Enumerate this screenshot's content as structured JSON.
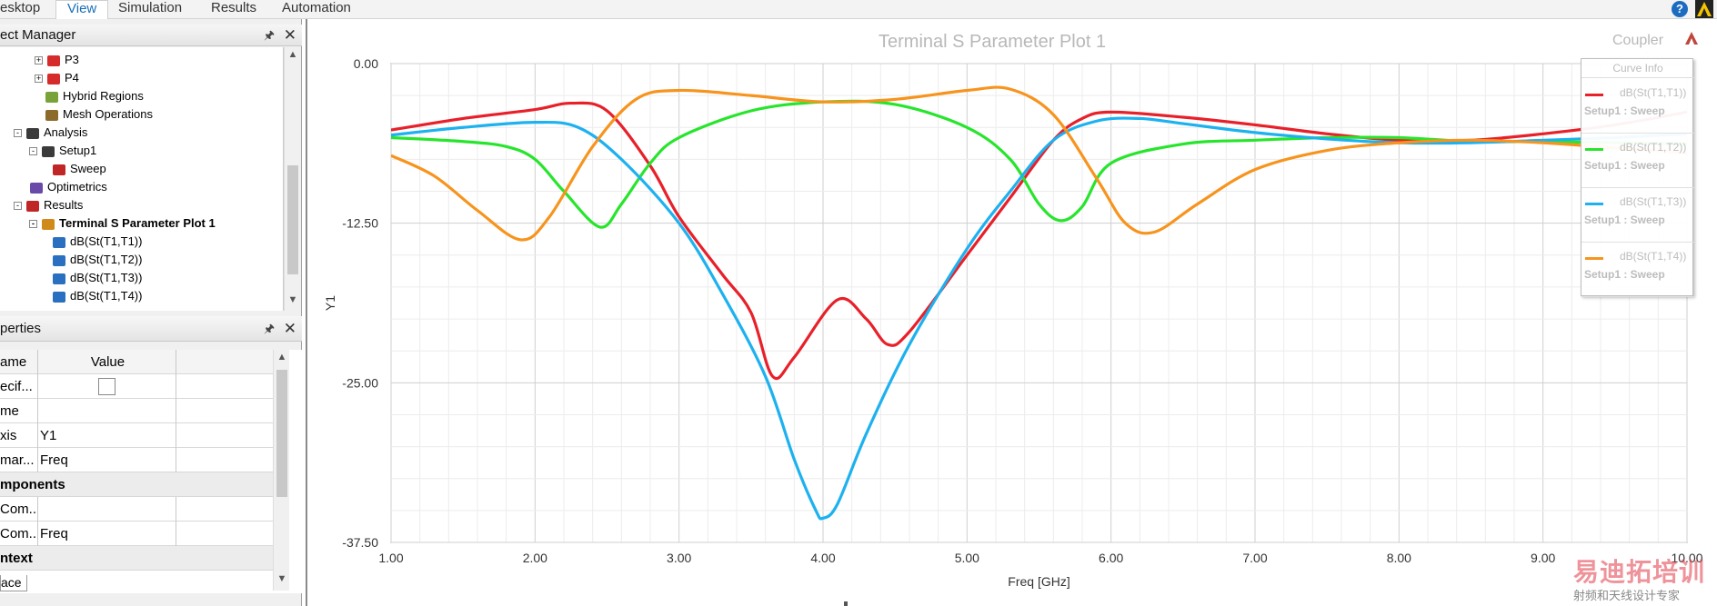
{
  "menu": {
    "items": [
      "esktop",
      "View",
      "Simulation",
      "Results",
      "Automation"
    ],
    "active_index": 1
  },
  "project_manager": {
    "title": "ect Manager",
    "tree": [
      {
        "label": "P3",
        "level": 3,
        "expander": "+",
        "icon": "port-icon"
      },
      {
        "label": "P4",
        "level": 3,
        "expander": "+",
        "icon": "port-icon"
      },
      {
        "label": "Hybrid Regions",
        "level": 2,
        "expander": "",
        "icon": "hybrid-regions-icon"
      },
      {
        "label": "Mesh Operations",
        "level": 2,
        "expander": "",
        "icon": "mesh-icon"
      },
      {
        "label": "Analysis",
        "level": 1,
        "expander": "-",
        "icon": "analysis-icon"
      },
      {
        "label": "Setup1",
        "level": 2,
        "expander": "-",
        "icon": "setup-icon"
      },
      {
        "label": "Sweep",
        "level": 3,
        "expander": "",
        "icon": "sweep-icon"
      },
      {
        "label": "Optimetrics",
        "level": 1,
        "expander": "",
        "icon": "optimetrics-icon"
      },
      {
        "label": "Results",
        "level": 1,
        "expander": "-",
        "icon": "results-icon"
      },
      {
        "label": "Terminal S Parameter Plot 1",
        "level": 2,
        "expander": "-",
        "icon": "plot-icon",
        "bold": true
      },
      {
        "label": "dB(St(T1,T1))",
        "level": 3,
        "expander": "",
        "icon": "trace-icon"
      },
      {
        "label": "dB(St(T1,T2))",
        "level": 3,
        "expander": "",
        "icon": "trace-icon"
      },
      {
        "label": "dB(St(T1,T3))",
        "level": 3,
        "expander": "",
        "icon": "trace-icon"
      },
      {
        "label": "dB(St(T1,T4))",
        "level": 3,
        "expander": "",
        "icon": "trace-icon"
      }
    ]
  },
  "properties": {
    "title": "perties",
    "header": {
      "name": "ame",
      "value": "Value"
    },
    "rows": [
      {
        "name": "ecif...",
        "value": "",
        "type": "checkbox"
      },
      {
        "name": "me",
        "value": ""
      },
      {
        "name": "xis",
        "value": "Y1"
      },
      {
        "name": "mar...",
        "value": "Freq"
      },
      {
        "name": "mponents",
        "value": "",
        "type": "group"
      },
      {
        "name": "Com...",
        "value": ""
      },
      {
        "name": "Com...",
        "value": "Freq"
      },
      {
        "name": "ntext",
        "value": "",
        "type": "group"
      }
    ],
    "bottom_tab": "ace"
  },
  "plot": {
    "title": "Terminal S Parameter Plot 1",
    "project": "Coupler",
    "curve_info": {
      "title": "Curve Info",
      "items": [
        {
          "name": "dB(St(T1,T1))",
          "setup": "Setup1 : Sweep",
          "color": "#e8202a"
        },
        {
          "name": "dB(St(T1,T2))",
          "setup": "Setup1 : Sweep",
          "color": "#27e52c"
        },
        {
          "name": "dB(St(T1,T3))",
          "setup": "Setup1 : Sweep",
          "color": "#1db1ef"
        },
        {
          "name": "dB(St(T1,T4))",
          "setup": "Setup1 : Sweep",
          "color": "#f7941d"
        }
      ]
    },
    "watermark": "易迪拓培训",
    "watermark_sub": "射频和天线设计专家"
  },
  "chart_data": {
    "type": "line",
    "title": "Terminal S Parameter Plot 1",
    "xlabel": "Freq [GHz]",
    "ylabel": "Y1",
    "xlim": [
      1.0,
      10.0
    ],
    "ylim": [
      -37.5,
      0.0
    ],
    "x_ticks": [
      "1.00",
      "2.00",
      "3.00",
      "4.00",
      "5.00",
      "6.00",
      "7.00",
      "8.00",
      "9.00",
      "10.00"
    ],
    "y_ticks": [
      "0.00",
      "-12.50",
      "-25.00",
      "-37.50"
    ],
    "grid": true,
    "legend": "top-right",
    "series": [
      {
        "name": "dB(St(T1,T1))",
        "color": "#e8202a",
        "x": [
          1.0,
          1.5,
          2.0,
          2.25,
          2.5,
          2.8,
          3.0,
          3.3,
          3.5,
          3.65,
          3.8,
          4.1,
          4.3,
          4.45,
          4.6,
          5.0,
          5.3,
          5.6,
          5.8,
          6.0,
          6.5,
          7.0,
          7.5,
          8.0,
          8.5,
          9.0,
          9.5,
          10.0
        ],
        "y": [
          -5.2,
          -4.3,
          -3.6,
          -3.1,
          -3.7,
          -8.0,
          -12.0,
          -16.5,
          -19.5,
          -24.5,
          -23.0,
          -18.5,
          -20.0,
          -22.0,
          -21.0,
          -15.0,
          -10.5,
          -6.0,
          -4.3,
          -3.8,
          -4.2,
          -4.8,
          -5.5,
          -6.0,
          -6.0,
          -5.5,
          -4.8,
          -3.8
        ]
      },
      {
        "name": "dB(St(T1,T2))",
        "color": "#27e52c",
        "x": [
          1.0,
          1.5,
          1.8,
          2.0,
          2.2,
          2.45,
          2.6,
          2.8,
          3.0,
          3.5,
          4.0,
          4.5,
          5.0,
          5.3,
          5.5,
          5.65,
          5.8,
          6.0,
          6.5,
          7.0,
          7.5,
          8.0,
          8.5,
          9.0,
          9.5,
          10.0
        ],
        "y": [
          -5.8,
          -6.1,
          -6.5,
          -7.5,
          -10.0,
          -12.8,
          -11.0,
          -7.8,
          -5.8,
          -3.7,
          -3.0,
          -3.2,
          -5.0,
          -7.5,
          -11.0,
          -12.3,
          -11.2,
          -7.8,
          -6.3,
          -6.0,
          -5.8,
          -5.8,
          -6.1,
          -6.1,
          -6.2,
          -6.3
        ]
      },
      {
        "name": "dB(St(T1,T3))",
        "color": "#1db1ef",
        "x": [
          1.0,
          1.5,
          2.0,
          2.3,
          2.6,
          3.0,
          3.3,
          3.6,
          3.8,
          3.95,
          4.0,
          4.1,
          4.3,
          4.6,
          5.0,
          5.3,
          5.6,
          5.9,
          6.2,
          6.5,
          7.0,
          7.5,
          8.0,
          8.5,
          9.0,
          9.5,
          10.0
        ],
        "y": [
          -5.6,
          -5.0,
          -4.6,
          -5.0,
          -7.5,
          -12.5,
          -18.0,
          -24.5,
          -31.0,
          -35.0,
          -35.6,
          -34.5,
          -29.0,
          -22.0,
          -14.5,
          -10.0,
          -6.0,
          -4.5,
          -4.3,
          -4.7,
          -5.4,
          -5.9,
          -6.2,
          -6.2,
          -6.0,
          -5.8,
          -5.5
        ]
      },
      {
        "name": "dB(St(T1,T4))",
        "color": "#f7941d",
        "x": [
          1.0,
          1.3,
          1.6,
          1.9,
          2.1,
          2.4,
          2.7,
          3.0,
          3.5,
          4.0,
          4.5,
          5.0,
          5.3,
          5.6,
          5.9,
          6.1,
          6.3,
          6.6,
          7.0,
          7.5,
          8.0,
          8.5,
          9.0,
          9.5,
          10.0
        ],
        "y": [
          -7.2,
          -8.8,
          -11.5,
          -13.8,
          -12.0,
          -6.5,
          -2.8,
          -2.1,
          -2.5,
          -3.0,
          -2.8,
          -2.1,
          -2.0,
          -4.0,
          -9.0,
          -12.5,
          -13.2,
          -11.0,
          -8.3,
          -6.8,
          -6.2,
          -6.0,
          -6.2,
          -6.6,
          -7.0
        ]
      }
    ]
  }
}
